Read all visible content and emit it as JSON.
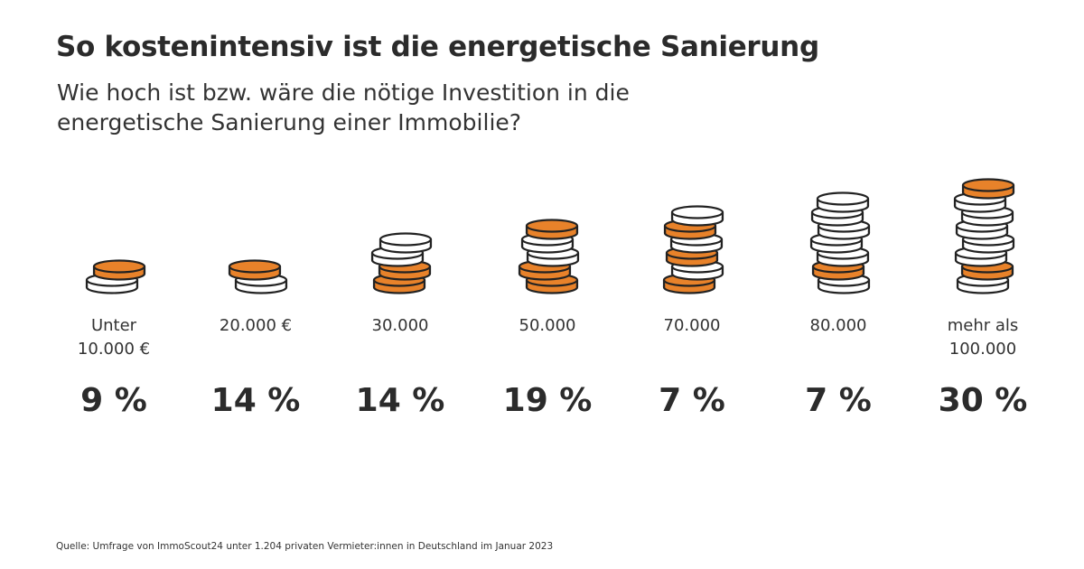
{
  "header": {
    "title": "So kostenintensiv ist die energetische Sanierung",
    "subtitle": "Wie hoch ist bzw. wäre die nötige Investition in die energetische Sanierung einer Immobilie?"
  },
  "chart_data": {
    "type": "bar",
    "categories": [
      [
        "Unter",
        "10.000 €"
      ],
      [
        "20.000 €"
      ],
      [
        "30.000"
      ],
      [
        "50.000"
      ],
      [
        "70.000"
      ],
      [
        "80.000"
      ],
      [
        "mehr als",
        "100.000"
      ]
    ],
    "values": [
      9,
      14,
      14,
      19,
      7,
      7,
      30
    ],
    "value_labels": [
      "9 %",
      "14 %",
      "14 %",
      "19 %",
      "7 %",
      "7 %",
      "30 %"
    ],
    "unit": "%",
    "coin_stacks": [
      [
        "orange",
        "white"
      ],
      [
        "orange",
        "white"
      ],
      [
        "white",
        "white",
        "orange",
        "orange"
      ],
      [
        "orange",
        "white",
        "white",
        "orange",
        "orange"
      ],
      [
        "white",
        "orange",
        "white",
        "orange",
        "white",
        "orange"
      ],
      [
        "white",
        "white",
        "white",
        "white",
        "white",
        "orange",
        "white"
      ],
      [
        "orange",
        "white",
        "white",
        "white",
        "white",
        "white",
        "orange",
        "white"
      ]
    ]
  },
  "colors": {
    "coin_orange": "#E8822A",
    "coin_white": "#FFFFFF",
    "outline": "#222222",
    "text": "#2B2B2B"
  },
  "footer": {
    "source": "Quelle: Umfrage von ImmoScout24 unter 1.204 privaten Vermieter:innen in Deutschland im Januar 2023"
  }
}
